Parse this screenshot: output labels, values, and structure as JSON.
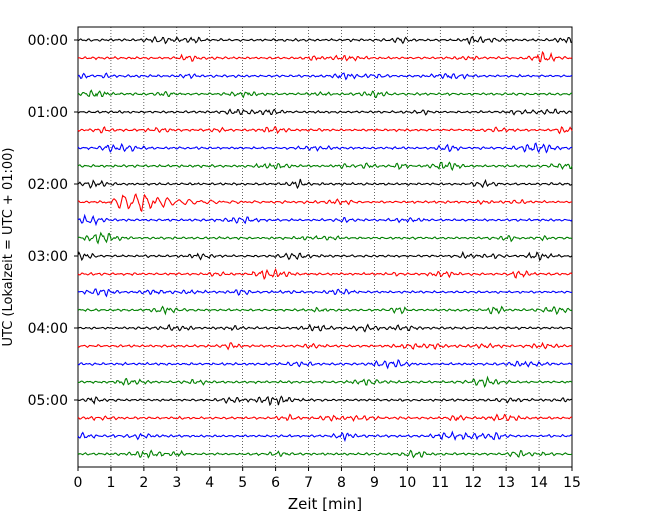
{
  "chart_data": {
    "type": "line",
    "title": "",
    "xlabel": "Zeit  [min]",
    "ylabel": "UTC (Lokalzeit = UTC + 01:00)",
    "xlim": [
      0,
      15
    ],
    "x_ticks": [
      "0",
      "1",
      "2",
      "3",
      "4",
      "5",
      "6",
      "7",
      "8",
      "9",
      "10",
      "11",
      "12",
      "13",
      "14",
      "15"
    ],
    "y_tick_labels": [
      "00:00",
      "01:00",
      "02:00",
      "03:00",
      "04:00",
      "05:00"
    ],
    "grid": "vertical dotted lines at each minute",
    "trace_interval_minutes": 15,
    "trace_count": 24,
    "first_trace": "00:00",
    "last_trace": "05:45",
    "colors_cycle": [
      "#000000",
      "#ff0000",
      "#0000ff",
      "#008000"
    ],
    "notable_events": [
      {
        "trace": "02:15",
        "x_start_min": 0.8,
        "x_end_min": 3.6,
        "description": "large oscillation"
      }
    ]
  }
}
